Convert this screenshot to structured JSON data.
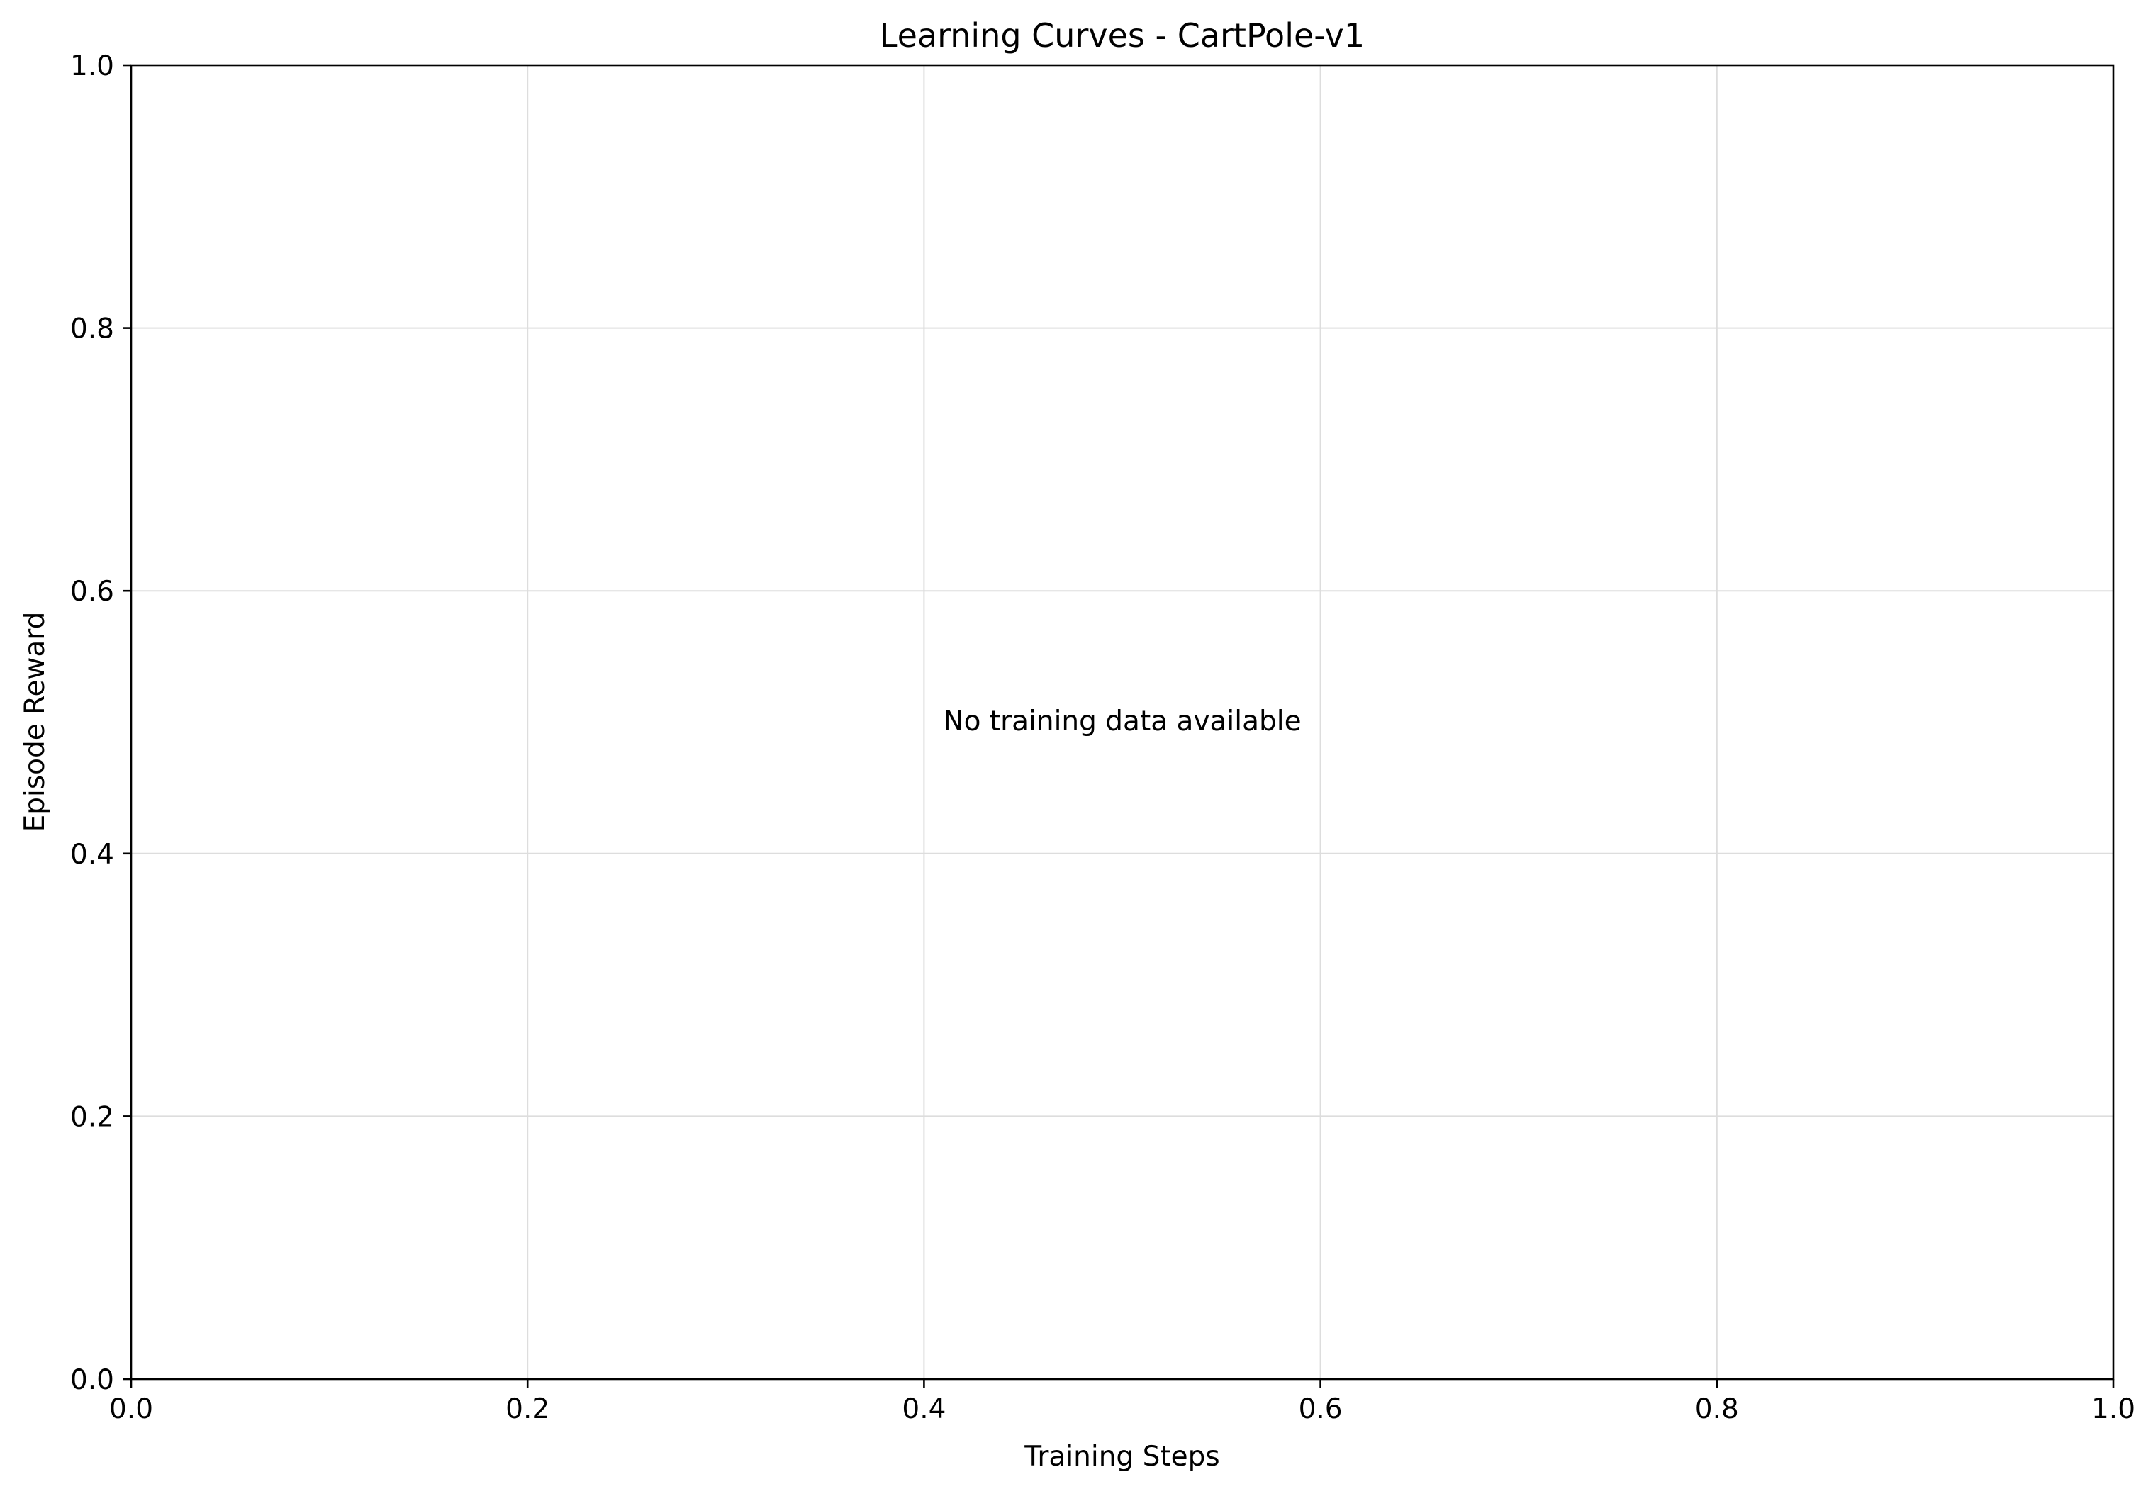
{
  "chart_data": {
    "type": "line",
    "title": "Learning Curves - CartPole-v1",
    "xlabel": "Training Steps",
    "ylabel": "Episode Reward",
    "xlim": [
      0.0,
      1.0
    ],
    "ylim": [
      0.0,
      1.0
    ],
    "x_ticks": [
      "0.0",
      "0.2",
      "0.4",
      "0.6",
      "0.8",
      "1.0"
    ],
    "y_ticks": [
      "0.0",
      "0.2",
      "0.4",
      "0.6",
      "0.8",
      "1.0"
    ],
    "x_tick_values": [
      0.0,
      0.2,
      0.4,
      0.6,
      0.8,
      1.0
    ],
    "y_tick_values": [
      0.0,
      0.2,
      0.4,
      0.6,
      0.8,
      1.0
    ],
    "grid": true,
    "series": [],
    "annotation": "No training data available",
    "colors": {
      "grid": "#dddddd",
      "axes": "#000000",
      "background": "#ffffff"
    }
  }
}
